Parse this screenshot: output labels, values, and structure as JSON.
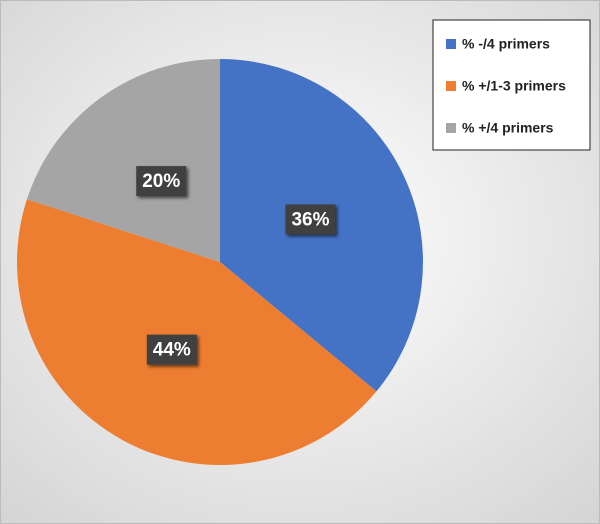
{
  "chart_data": {
    "type": "pie",
    "categories": [
      "% -/4 primers",
      "% +/1-3 primers",
      "% +/4 primers"
    ],
    "values": [
      36,
      44,
      20
    ],
    "value_labels": [
      "36%",
      "44%",
      "20%"
    ],
    "colors": [
      "#4472c4",
      "#ed7d31",
      "#a5a5a5"
    ],
    "legend": "top-right"
  }
}
